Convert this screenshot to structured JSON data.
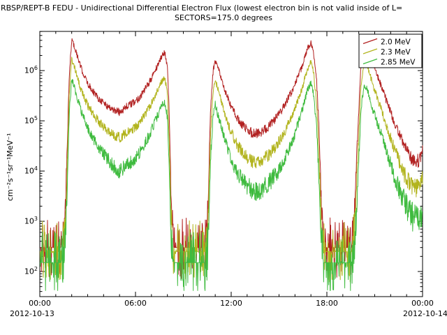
{
  "chart": {
    "title_line1": "RBSP/REPT-B  FEDU - Unidirectional Differential Electron Flux (lowest electron bin is not valid inside of L=",
    "title_line2": "SECTORS=175.0 degrees",
    "ylabel": "cm⁻²s⁻¹sr⁻¹MeV⁻¹",
    "x_date_left": "2012-10-13",
    "x_date_right": "2012-10-14"
  },
  "chart_data": {
    "type": "line",
    "title": "RBSP/REPT-B FEDU - Unidirectional Differential Electron Flux",
    "subtitle": "SECTORS=175.0 degrees",
    "ylabel": "cm⁻²s⁻¹sr⁻¹MeV⁻¹",
    "x_unit": "hours UT on 2012-10-13",
    "xlim": [
      0,
      24
    ],
    "x_tick_hours": [
      0,
      6,
      12,
      18,
      24
    ],
    "x_tick_labels": [
      "00:00",
      "06:00",
      "12:00",
      "18:00",
      "00:00"
    ],
    "x_minor_interval_hours": 1,
    "y_scale": "log",
    "ylim_exp": [
      1.5,
      6.78
    ],
    "y_tick_exponents": [
      2,
      3,
      4,
      5,
      6
    ],
    "grid": false,
    "legend_position": "top-right",
    "frame_color": "#000000",
    "series": [
      {
        "name": "2.0 MeV",
        "color": "#b22222",
        "points": [
          [
            0,
            300
          ],
          [
            1.3,
            300
          ],
          [
            1.55,
            500
          ],
          [
            1.7,
            20000
          ],
          [
            1.85,
            800000
          ],
          [
            2.0,
            4200000
          ],
          [
            2.2,
            2800000
          ],
          [
            2.6,
            1100000
          ],
          [
            3.0,
            550000
          ],
          [
            3.6,
            300000
          ],
          [
            4.2,
            200000
          ],
          [
            4.7,
            160000
          ],
          [
            5.0,
            150000
          ],
          [
            5.4,
            190000
          ],
          [
            5.8,
            220000
          ],
          [
            6.2,
            280000
          ],
          [
            6.6,
            420000
          ],
          [
            7.0,
            700000
          ],
          [
            7.4,
            1300000
          ],
          [
            7.7,
            2100000
          ],
          [
            7.85,
            2300000
          ],
          [
            8.0,
            1200000
          ],
          [
            8.1,
            200000
          ],
          [
            8.25,
            2000
          ],
          [
            8.4,
            300
          ],
          [
            10.35,
            300
          ],
          [
            10.55,
            2000
          ],
          [
            10.7,
            150000
          ],
          [
            10.85,
            900000
          ],
          [
            11.0,
            1600000
          ],
          [
            11.15,
            1200000
          ],
          [
            11.5,
            500000
          ],
          [
            11.9,
            220000
          ],
          [
            12.4,
            110000
          ],
          [
            12.9,
            70000
          ],
          [
            13.4,
            55000
          ],
          [
            13.9,
            60000
          ],
          [
            14.4,
            80000
          ],
          [
            14.9,
            120000
          ],
          [
            15.4,
            220000
          ],
          [
            15.9,
            450000
          ],
          [
            16.4,
            1100000
          ],
          [
            16.8,
            2800000
          ],
          [
            17.0,
            3600000
          ],
          [
            17.15,
            2600000
          ],
          [
            17.35,
            700000
          ],
          [
            17.5,
            80000
          ],
          [
            17.65,
            2000
          ],
          [
            17.8,
            300
          ],
          [
            19.55,
            300
          ],
          [
            19.75,
            2000
          ],
          [
            19.95,
            80000
          ],
          [
            20.15,
            1500000
          ],
          [
            20.35,
            3900000
          ],
          [
            20.55,
            3200000
          ],
          [
            20.9,
            1400000
          ],
          [
            21.4,
            500000
          ],
          [
            21.9,
            180000
          ],
          [
            22.4,
            70000
          ],
          [
            22.9,
            30000
          ],
          [
            23.4,
            16000
          ],
          [
            23.8,
            16000
          ],
          [
            24,
            26000
          ]
        ]
      },
      {
        "name": "2.3 MeV",
        "color": "#b2b41e",
        "points": [
          [
            0,
            250
          ],
          [
            1.3,
            250
          ],
          [
            1.55,
            400
          ],
          [
            1.7,
            8000
          ],
          [
            1.85,
            350000
          ],
          [
            2.0,
            1700000
          ],
          [
            2.2,
            1100000
          ],
          [
            2.6,
            400000
          ],
          [
            3.0,
            200000
          ],
          [
            3.6,
            105000
          ],
          [
            4.2,
            65000
          ],
          [
            4.7,
            50000
          ],
          [
            5.0,
            47000
          ],
          [
            5.4,
            55000
          ],
          [
            5.8,
            65000
          ],
          [
            6.2,
            85000
          ],
          [
            6.6,
            130000
          ],
          [
            7.0,
            220000
          ],
          [
            7.4,
            420000
          ],
          [
            7.7,
            650000
          ],
          [
            7.85,
            700000
          ],
          [
            8.0,
            350000
          ],
          [
            8.1,
            60000
          ],
          [
            8.25,
            800
          ],
          [
            8.4,
            250
          ],
          [
            10.35,
            250
          ],
          [
            10.55,
            800
          ],
          [
            10.7,
            50000
          ],
          [
            10.85,
            350000
          ],
          [
            11.0,
            650000
          ],
          [
            11.15,
            450000
          ],
          [
            11.5,
            180000
          ],
          [
            11.9,
            70000
          ],
          [
            12.4,
            32000
          ],
          [
            12.9,
            20000
          ],
          [
            13.4,
            15000
          ],
          [
            13.9,
            16000
          ],
          [
            14.4,
            22000
          ],
          [
            14.9,
            34000
          ],
          [
            15.4,
            65000
          ],
          [
            15.9,
            140000
          ],
          [
            16.4,
            400000
          ],
          [
            16.8,
            1100000
          ],
          [
            17.0,
            1500000
          ],
          [
            17.15,
            1000000
          ],
          [
            17.35,
            240000
          ],
          [
            17.5,
            24000
          ],
          [
            17.65,
            800
          ],
          [
            17.8,
            250
          ],
          [
            19.55,
            250
          ],
          [
            19.75,
            800
          ],
          [
            19.95,
            25000
          ],
          [
            20.15,
            550000
          ],
          [
            20.35,
            1500000
          ],
          [
            20.55,
            1200000
          ],
          [
            20.9,
            500000
          ],
          [
            21.4,
            170000
          ],
          [
            21.9,
            55000
          ],
          [
            22.4,
            20000
          ],
          [
            22.9,
            8000
          ],
          [
            23.4,
            4500
          ],
          [
            23.8,
            4500
          ],
          [
            24,
            7000
          ]
        ]
      },
      {
        "name": "2.85 MeV",
        "color": "#3fbb3f",
        "points": [
          [
            0,
            150
          ],
          [
            1.3,
            150
          ],
          [
            1.55,
            250
          ],
          [
            1.7,
            2500
          ],
          [
            1.85,
            140000
          ],
          [
            2.0,
            700000
          ],
          [
            2.2,
            420000
          ],
          [
            2.6,
            150000
          ],
          [
            3.0,
            70000
          ],
          [
            3.6,
            32000
          ],
          [
            4.2,
            18000
          ],
          [
            4.7,
            12000
          ],
          [
            5.0,
            10000
          ],
          [
            5.4,
            13000
          ],
          [
            5.8,
            16000
          ],
          [
            6.2,
            22000
          ],
          [
            6.6,
            35000
          ],
          [
            7.0,
            65000
          ],
          [
            7.4,
            130000
          ],
          [
            7.7,
            210000
          ],
          [
            7.85,
            230000
          ],
          [
            8.0,
            120000
          ],
          [
            8.1,
            18000
          ],
          [
            8.25,
            300
          ],
          [
            8.4,
            150
          ],
          [
            10.35,
            150
          ],
          [
            10.55,
            300
          ],
          [
            10.7,
            15000
          ],
          [
            10.85,
            110000
          ],
          [
            11.0,
            210000
          ],
          [
            11.15,
            140000
          ],
          [
            11.5,
            55000
          ],
          [
            11.9,
            20000
          ],
          [
            12.4,
            9000
          ],
          [
            12.9,
            5500
          ],
          [
            13.4,
            4000
          ],
          [
            13.9,
            4300
          ],
          [
            14.4,
            6000
          ],
          [
            14.9,
            9500
          ],
          [
            15.4,
            19000
          ],
          [
            15.9,
            45000
          ],
          [
            16.4,
            140000
          ],
          [
            16.8,
            420000
          ],
          [
            17.0,
            560000
          ],
          [
            17.15,
            380000
          ],
          [
            17.35,
            80000
          ],
          [
            17.5,
            7000
          ],
          [
            17.65,
            300
          ],
          [
            17.8,
            150
          ],
          [
            19.55,
            150
          ],
          [
            19.75,
            300
          ],
          [
            19.95,
            8000
          ],
          [
            20.15,
            180000
          ],
          [
            20.35,
            520000
          ],
          [
            20.55,
            400000
          ],
          [
            20.9,
            160000
          ],
          [
            21.4,
            55000
          ],
          [
            21.9,
            17000
          ],
          [
            22.4,
            5500
          ],
          [
            22.9,
            2200
          ],
          [
            23.4,
            1100
          ],
          [
            23.8,
            1100
          ],
          [
            24,
            1600
          ]
        ]
      }
    ]
  }
}
